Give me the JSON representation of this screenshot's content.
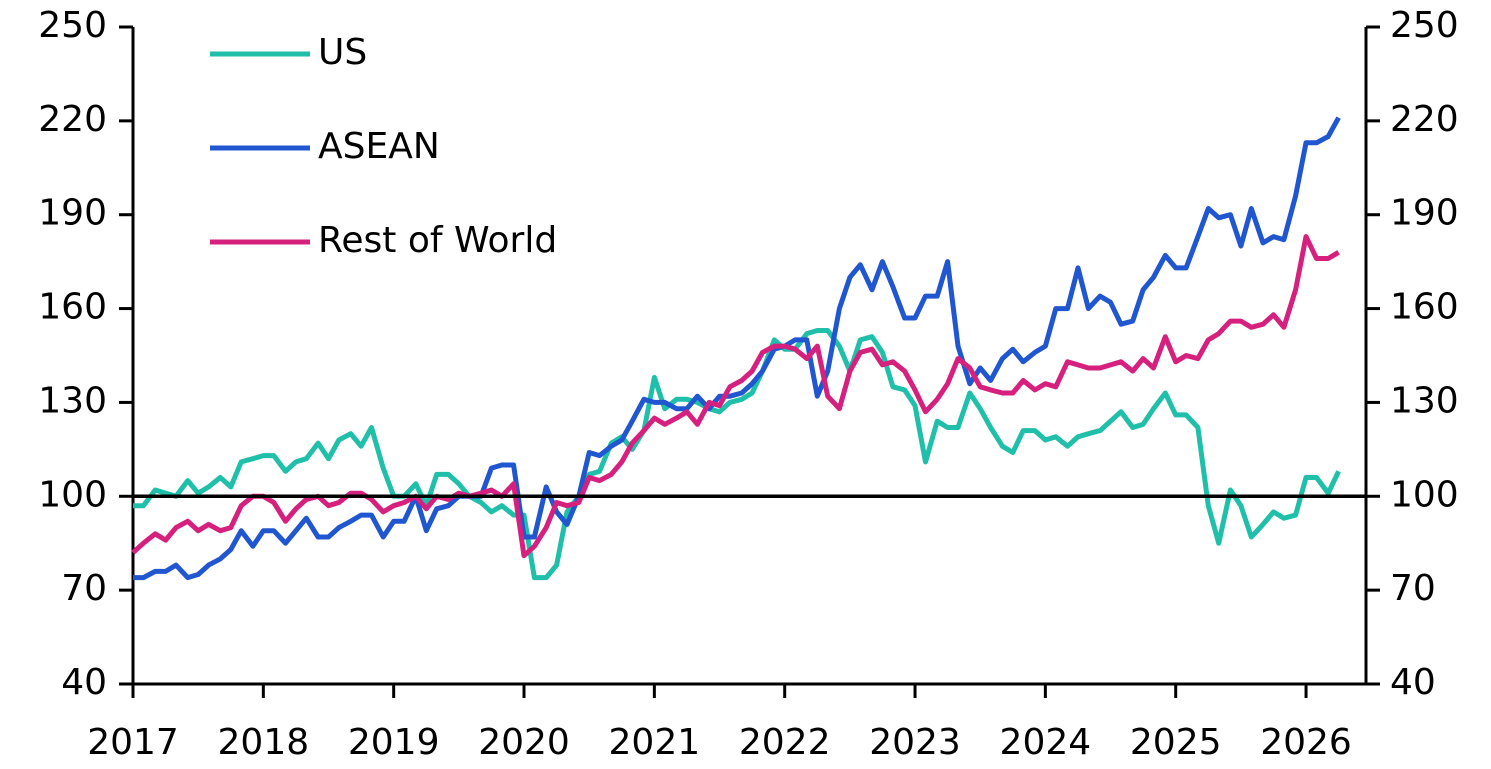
{
  "chart_data": {
    "type": "line",
    "x": [
      2017,
      2017.08,
      2017.17,
      2017.25,
      2017.33,
      2017.42,
      2017.5,
      2017.58,
      2017.67,
      2017.75,
      2017.83,
      2017.92,
      2018,
      2018.08,
      2018.17,
      2018.25,
      2018.33,
      2018.42,
      2018.5,
      2018.58,
      2018.67,
      2018.75,
      2018.83,
      2018.92,
      2019,
      2019.08,
      2019.17,
      2019.25,
      2019.33,
      2019.42,
      2019.5,
      2019.58,
      2019.67,
      2019.75,
      2019.83,
      2019.92,
      2020,
      2020.08,
      2020.17,
      2020.25,
      2020.33,
      2020.42,
      2020.5,
      2020.58,
      2020.67,
      2020.75,
      2020.83,
      2020.92,
      2021,
      2021.08,
      2021.17,
      2021.25,
      2021.33,
      2021.42,
      2021.5,
      2021.58,
      2021.67,
      2021.75,
      2021.83,
      2021.92,
      2022,
      2022.08,
      2022.17,
      2022.25,
      2022.33,
      2022.42,
      2022.5,
      2022.58,
      2022.67,
      2022.75,
      2022.83,
      2022.92,
      2023,
      2023.08,
      2023.17,
      2023.25,
      2023.33,
      2023.42,
      2023.5,
      2023.58,
      2023.67,
      2023.75,
      2023.83,
      2023.92,
      2024,
      2024.08,
      2024.17,
      2024.25,
      2024.33,
      2024.42,
      2024.5,
      2024.58,
      2024.67,
      2024.75,
      2024.83,
      2024.92,
      2025,
      2025.08,
      2025.17,
      2025.25,
      2025.33,
      2025.42,
      2025.5,
      2025.58,
      2025.67,
      2025.75,
      2025.83,
      2025.92,
      2026,
      2026.08,
      2026.17,
      2026.25
    ],
    "series": [
      {
        "name": "US",
        "color": "#1fbfaa",
        "values": [
          97,
          97,
          102,
          101,
          100,
          105,
          101,
          103,
          106,
          103,
          111,
          112,
          113,
          113,
          108,
          111,
          112,
          117,
          112,
          118,
          120,
          116,
          122,
          109,
          100,
          100,
          104,
          97,
          107,
          107,
          104,
          100,
          98,
          95,
          97,
          94,
          94,
          74,
          74,
          78,
          95,
          100,
          107,
          108,
          117,
          119,
          115,
          121,
          138,
          128,
          131,
          131,
          130,
          128,
          127,
          130,
          131,
          133,
          140,
          150,
          147,
          147,
          152,
          153,
          153,
          148,
          140,
          150,
          151,
          146,
          135,
          134,
          129,
          111,
          124,
          122,
          122,
          133,
          128,
          122,
          116,
          114,
          121,
          121,
          118,
          119,
          116,
          119,
          120,
          121,
          124,
          127,
          122,
          123,
          128,
          133,
          126,
          126,
          122,
          97,
          85,
          102,
          97,
          87,
          91,
          95,
          93,
          94,
          106,
          106,
          101,
          108
        ]
      },
      {
        "name": "ASEAN",
        "color": "#2057d0",
        "values": [
          74,
          74,
          76,
          76,
          78,
          74,
          75,
          78,
          80,
          83,
          89,
          84,
          89,
          89,
          85,
          89,
          93,
          87,
          87,
          90,
          92,
          94,
          94,
          87,
          92,
          92,
          100,
          89,
          96,
          97,
          100,
          100,
          100,
          109,
          110,
          110,
          87,
          87,
          103,
          95,
          91,
          100,
          114,
          113,
          116,
          118,
          124,
          131,
          130,
          130,
          128,
          128,
          132,
          128,
          132,
          132,
          133,
          136,
          140,
          147,
          148,
          150,
          150,
          132,
          140,
          160,
          170,
          174,
          166,
          175,
          167,
          157,
          157,
          164,
          164,
          175,
          148,
          136,
          141,
          137,
          144,
          147,
          143,
          146,
          148,
          160,
          160,
          173,
          160,
          164,
          162,
          155,
          156,
          166,
          170,
          177,
          173,
          173,
          183,
          192,
          189,
          190,
          180,
          192,
          181,
          183,
          182,
          196,
          213,
          213,
          215,
          221
        ]
      },
      {
        "name": "Rest of World",
        "color": "#d6207e",
        "values": [
          82,
          85,
          88,
          86,
          90,
          92,
          89,
          91,
          89,
          90,
          97,
          100,
          100,
          98,
          92,
          96,
          99,
          100,
          97,
          98,
          101,
          101,
          99,
          95,
          97,
          98,
          100,
          96,
          100,
          99,
          101,
          100,
          101,
          102,
          100,
          104,
          81,
          84,
          90,
          98,
          97,
          98,
          106,
          105,
          107,
          111,
          117,
          121,
          125,
          123,
          125,
          127,
          123,
          130,
          129,
          135,
          137,
          140,
          146,
          148,
          148,
          147,
          144,
          148,
          132,
          128,
          140,
          146,
          147,
          142,
          143,
          140,
          134,
          127,
          131,
          136,
          144,
          141,
          135,
          134,
          133,
          133,
          137,
          134,
          136,
          135,
          143,
          142,
          141,
          141,
          142,
          143,
          140,
          144,
          141,
          151,
          143,
          145,
          144,
          150,
          152,
          156,
          156,
          154,
          155,
          158,
          154,
          166,
          183,
          176,
          176,
          178
        ]
      }
    ],
    "xlim": [
      2017,
      2026.46
    ],
    "xticks": [
      2017,
      2018,
      2019,
      2020,
      2021,
      2022,
      2023,
      2024,
      2025,
      2026
    ],
    "ylim": [
      40,
      250
    ],
    "yticks": [
      40,
      70,
      100,
      130,
      160,
      190,
      220,
      250
    ],
    "y2lim": [
      40,
      250
    ],
    "y2ticks": [
      40,
      70,
      100,
      130,
      160,
      190,
      220,
      250
    ],
    "reference_line": 100,
    "legend": "upper left"
  }
}
